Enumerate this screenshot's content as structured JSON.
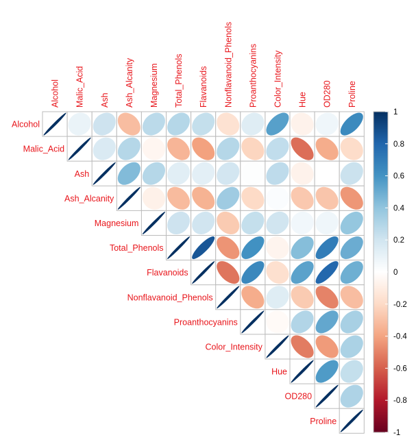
{
  "chart_data": {
    "type": "heatmap",
    "subtype": "correlation-matrix-upper-ellipse",
    "variables": [
      "Alcohol",
      "Malic_Acid",
      "Ash",
      "Ash_Alcanity",
      "Magnesium",
      "Total_Phenols",
      "Flavanoids",
      "Nonflavanoid_Phenols",
      "Proanthocyanins",
      "Color_Intensity",
      "Hue",
      "OD280",
      "Proline"
    ],
    "matrix": [
      [
        1.0,
        0.09,
        0.21,
        -0.31,
        0.27,
        0.29,
        0.24,
        -0.16,
        0.14,
        0.55,
        -0.07,
        0.07,
        0.64
      ],
      [
        0.09,
        1.0,
        0.16,
        0.29,
        -0.05,
        -0.34,
        -0.41,
        0.29,
        -0.22,
        0.25,
        -0.56,
        -0.37,
        -0.19
      ],
      [
        0.21,
        0.16,
        1.0,
        0.44,
        0.29,
        0.13,
        0.12,
        0.19,
        0.01,
        0.26,
        -0.07,
        0.0,
        0.22
      ],
      [
        -0.31,
        0.29,
        0.44,
        1.0,
        -0.08,
        -0.32,
        -0.35,
        0.36,
        -0.2,
        0.02,
        -0.27,
        -0.28,
        -0.44
      ],
      [
        0.27,
        -0.05,
        0.29,
        -0.08,
        1.0,
        0.21,
        0.2,
        -0.26,
        0.24,
        0.2,
        0.06,
        0.07,
        0.39
      ],
      [
        0.29,
        -0.34,
        0.13,
        -0.32,
        0.21,
        1.0,
        0.86,
        -0.45,
        0.61,
        -0.06,
        0.43,
        0.7,
        0.5
      ],
      [
        0.24,
        -0.41,
        0.12,
        -0.35,
        0.2,
        0.86,
        1.0,
        -0.54,
        0.65,
        -0.17,
        0.54,
        0.79,
        0.49
      ],
      [
        -0.16,
        0.29,
        0.19,
        0.36,
        -0.26,
        -0.45,
        -0.54,
        1.0,
        -0.37,
        0.14,
        -0.26,
        -0.5,
        -0.31
      ],
      [
        0.14,
        -0.22,
        0.01,
        -0.2,
        0.24,
        0.61,
        0.65,
        -0.37,
        1.0,
        -0.03,
        0.3,
        0.52,
        0.33
      ],
      [
        0.55,
        0.25,
        0.26,
        0.02,
        0.2,
        -0.06,
        -0.17,
        0.14,
        -0.03,
        1.0,
        -0.52,
        -0.43,
        0.32
      ],
      [
        -0.07,
        -0.56,
        -0.07,
        -0.27,
        0.06,
        0.43,
        0.54,
        -0.26,
        0.3,
        -0.52,
        1.0,
        0.57,
        0.24
      ],
      [
        0.07,
        -0.37,
        0.0,
        -0.28,
        0.07,
        0.7,
        0.79,
        -0.5,
        0.52,
        -0.43,
        0.57,
        1.0,
        0.31
      ],
      [
        0.64,
        -0.19,
        0.22,
        -0.44,
        0.39,
        0.5,
        0.49,
        -0.31,
        0.33,
        0.32,
        0.24,
        0.31,
        1.0
      ]
    ],
    "colorbar": {
      "range": [
        -1,
        1
      ],
      "ticks": [
        "-1",
        "-0.8",
        "-0.6",
        "-0.4",
        "-0.2",
        "0",
        "0.2",
        "0.4",
        "0.6",
        "0.8",
        "1"
      ],
      "colors": [
        "#67001f",
        "#b2182b",
        "#d6604d",
        "#f4a582",
        "#fddbc7",
        "#ffffff",
        "#d1e5f0",
        "#92c5de",
        "#4393c3",
        "#2166ac",
        "#053061"
      ]
    },
    "label_color": "#e8151b",
    "grid_color": "#bbbbbb",
    "title": "",
    "xlabel": "",
    "ylabel": ""
  }
}
